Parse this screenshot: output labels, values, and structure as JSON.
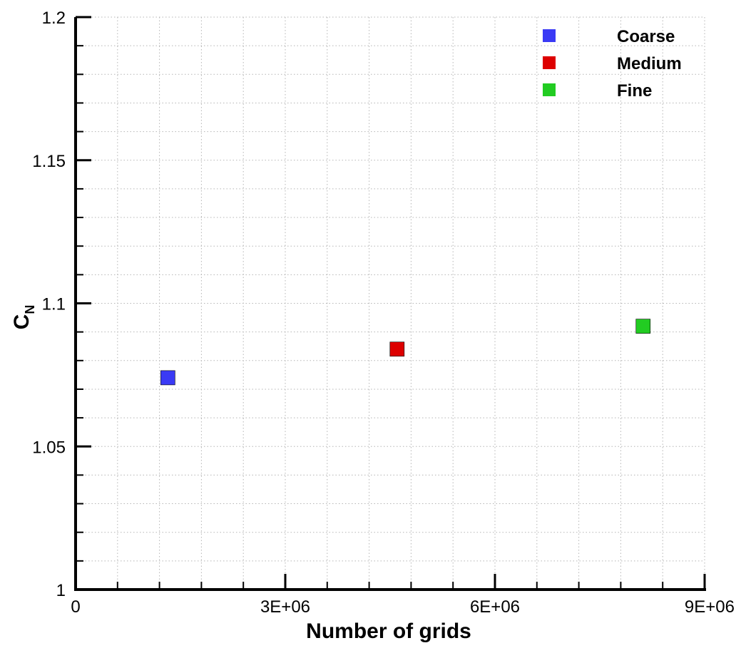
{
  "chart_data": {
    "type": "scatter",
    "title": "",
    "xlabel": "Number of grids",
    "ylabel_main": "C",
    "ylabel_sub": "N",
    "xlim": [
      0,
      9000000
    ],
    "ylim": [
      1.0,
      1.2
    ],
    "x_ticks": [
      {
        "value": 0,
        "label": "0"
      },
      {
        "value": 3000000,
        "label": "3E+06"
      },
      {
        "value": 6000000,
        "label": "6E+06"
      },
      {
        "value": 9000000,
        "label": "9E+06"
      }
    ],
    "y_ticks": [
      {
        "value": 1.0,
        "label": "1"
      },
      {
        "value": 1.05,
        "label": "1.05"
      },
      {
        "value": 1.1,
        "label": "1.1"
      },
      {
        "value": 1.15,
        "label": "1.15"
      },
      {
        "value": 1.2,
        "label": "1.2"
      }
    ],
    "x_minor_step": 600000,
    "y_minor_step": 0.01,
    "grid": true,
    "legend_position": "top-right",
    "series": [
      {
        "name": "Coarse",
        "color": "#3a3af5",
        "x": [
          1320000
        ],
        "y": [
          1.074
        ]
      },
      {
        "name": "Medium",
        "color": "#dd0000",
        "x": [
          4600000
        ],
        "y": [
          1.084
        ]
      },
      {
        "name": "Fine",
        "color": "#22cc22",
        "x": [
          8120000
        ],
        "y": [
          1.092
        ]
      }
    ]
  }
}
